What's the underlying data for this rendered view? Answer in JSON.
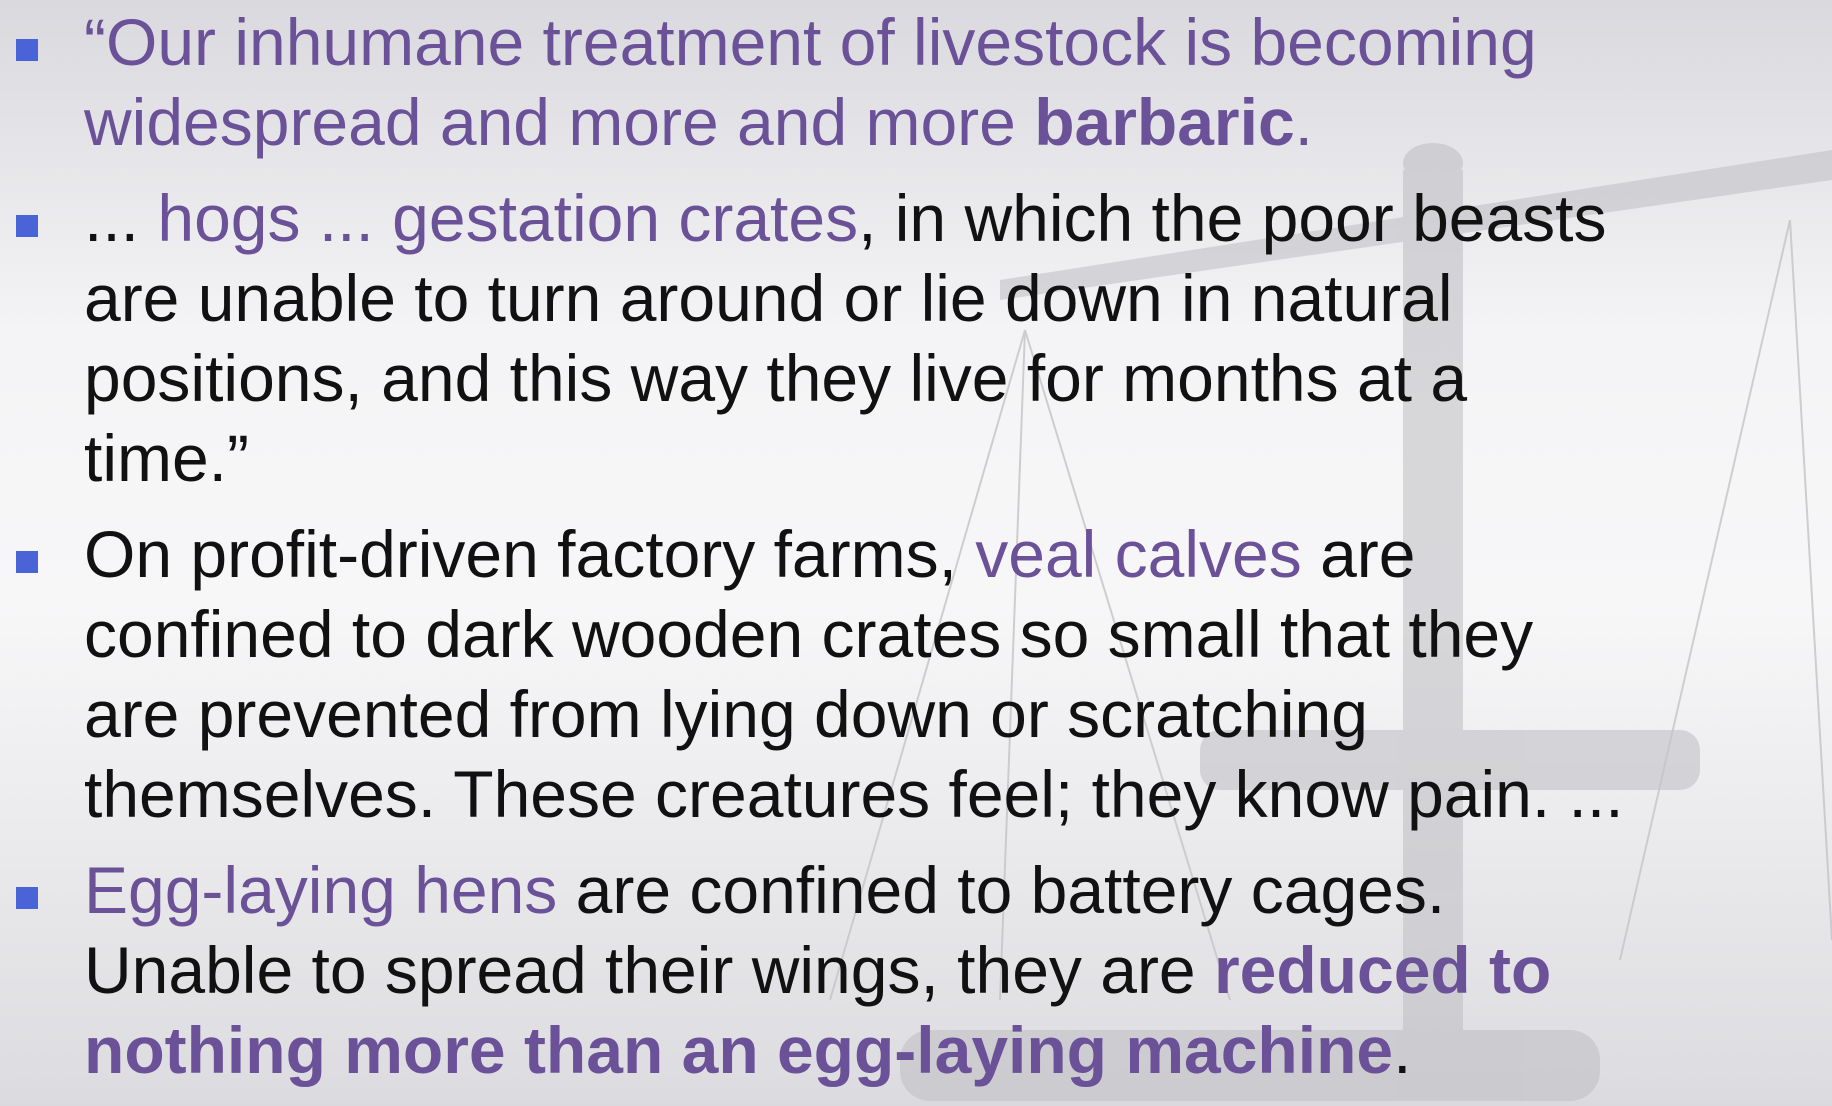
{
  "bullets": [
    {
      "lines": [
        [
          "“Our inhumane treatment of livestock is becoming"
        ],
        [
          "widespread and more and more ",
          "barbaric",
          "."
        ]
      ]
    },
    {
      "lines": [
        [
          "... ",
          "hogs ... gestation crates",
          ", in which the poor beasts"
        ],
        [
          "are unable to turn around or lie down in natural"
        ],
        [
          "positions, and this way they live for months at a"
        ],
        [
          "time.”"
        ]
      ]
    },
    {
      "lines": [
        [
          "On profit-driven factory farms, ",
          "veal calves",
          " are"
        ],
        [
          "confined to dark wooden crates so small that they"
        ],
        [
          "are prevented from lying down or scratching"
        ],
        [
          "themselves. These creatures feel; they know pain. ..."
        ]
      ]
    },
    {
      "lines": [
        [
          "Egg-laying hens",
          " are confined to battery cages."
        ],
        [
          "Unable to spread their wings, they are ",
          "reduced to"
        ],
        [
          "nothing more than an egg-laying machine",
          "."
        ]
      ]
    }
  ]
}
